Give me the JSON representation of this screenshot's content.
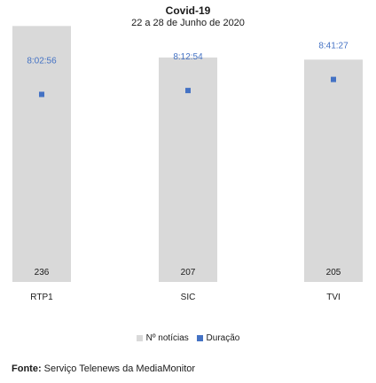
{
  "chart_data": {
    "type": "bar",
    "title": "Covid-19",
    "subtitle": "22 a 28 de Junho de 2020",
    "categories": [
      "RTP1",
      "SIC",
      "TVI"
    ],
    "series": [
      {
        "name": "Nº notícias",
        "type": "bar",
        "color": "#d9d9d9",
        "values": [
          236,
          207,
          205
        ]
      },
      {
        "name": "Duração",
        "type": "scatter",
        "color": "#4472c4",
        "values": [
          "8:02:56",
          "8:12:54",
          "8:41:27"
        ]
      }
    ],
    "value_labels_color": "#4472c4",
    "legend_position": "bottom"
  },
  "source": {
    "label": "Fonte:",
    "text": " Serviço Telenews da MediaMonitor"
  }
}
